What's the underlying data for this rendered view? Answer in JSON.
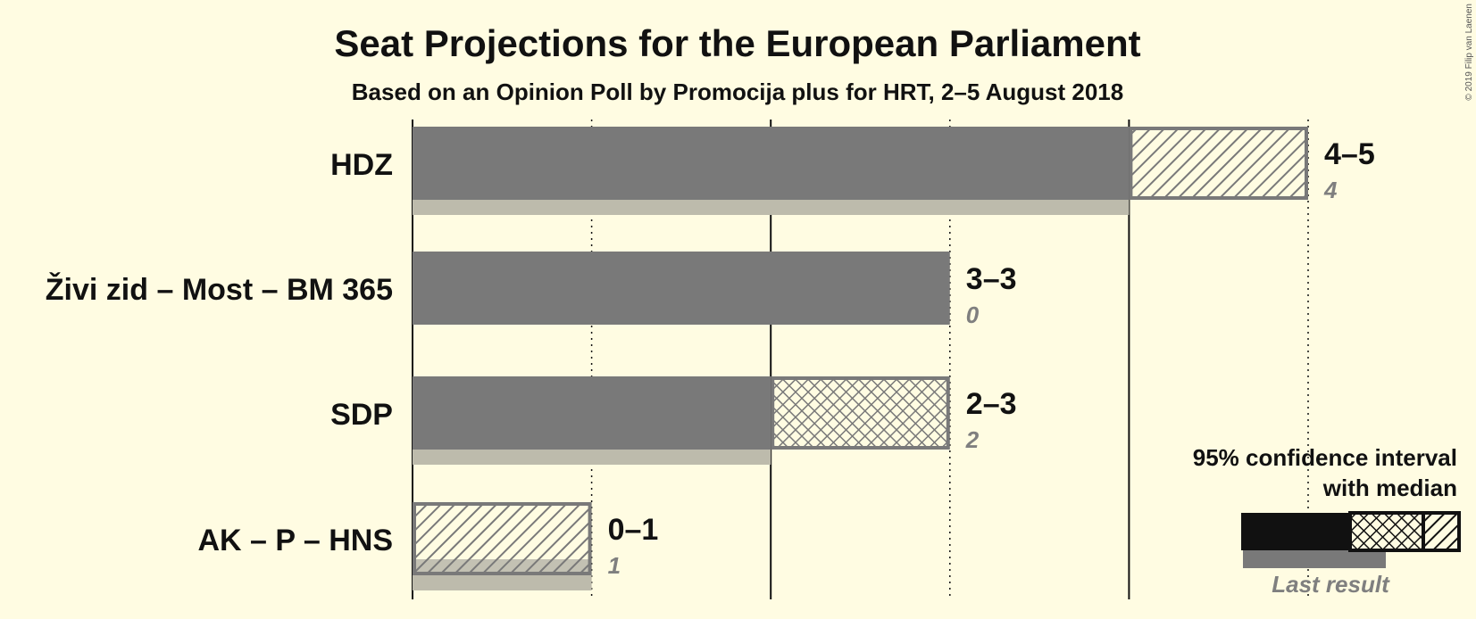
{
  "chart_data": {
    "type": "bar",
    "title": "Seat Projections for the European Parliament",
    "subtitle": "Based on an Opinion Poll by Promocija plus for HRT, 2–5 August 2018",
    "copyright": "© 2019 Filip van Laenen",
    "xlim": [
      0,
      5
    ],
    "parties": [
      {
        "name": "HDZ",
        "low": 4,
        "median": 4,
        "high": 5,
        "last": 4,
        "range_label": "4–5",
        "last_label": "4"
      },
      {
        "name": "Živi zid – Most – BM 365",
        "low": 3,
        "median": 3,
        "high": 3,
        "last": 0,
        "range_label": "3–3",
        "last_label": "0"
      },
      {
        "name": "SDP",
        "low": 2,
        "median": 3,
        "high": 3,
        "last": 2,
        "range_label": "2–3",
        "last_label": "2"
      },
      {
        "name": "AK – P – HNS",
        "low": 0,
        "median": 0,
        "high": 1,
        "last": 1,
        "range_label": "0–1",
        "last_label": "1"
      }
    ],
    "legend": {
      "title_line1": "95% confidence interval",
      "title_line2": "with median",
      "last_result": "Last result"
    },
    "colors": {
      "background": "#FFFCE2",
      "bar": "#797979",
      "last_result": "#BDBBAC",
      "text": "#111111",
      "muted_text": "#7F7F7F",
      "legend_dark": "#111111"
    }
  }
}
